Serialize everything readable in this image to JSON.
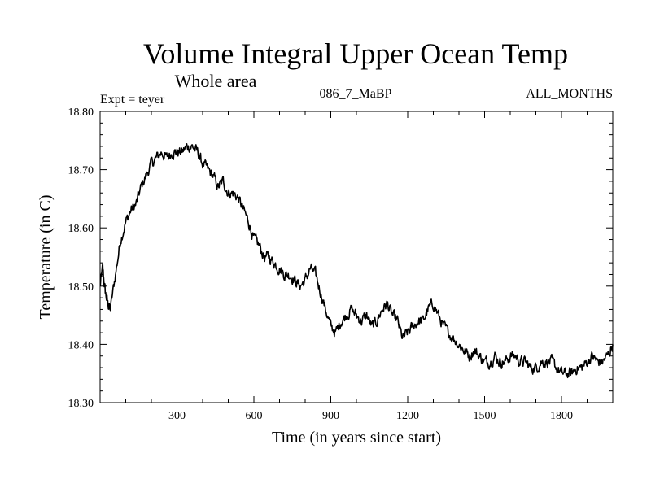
{
  "chart_data": {
    "type": "line",
    "title": "Volume Integral Upper Ocean Temp",
    "subtitle": "Whole area",
    "left_note": "Expt = teyer",
    "center_note": "086_7_MaBP",
    "right_note": "ALL_MONTHS",
    "xlabel": "Time (in years since start)",
    "ylabel": "Temperature (in C)",
    "xlim": [
      0,
      2000
    ],
    "ylim": [
      18.3,
      18.8
    ],
    "x_ticks": [
      300,
      600,
      900,
      1200,
      1500,
      1800
    ],
    "x_tick_labels": [
      "300",
      "600",
      "900",
      "1200",
      "1500",
      "1800"
    ],
    "y_ticks": [
      18.3,
      18.4,
      18.5,
      18.6,
      18.7,
      18.8
    ],
    "y_tick_labels": [
      "18.30",
      "18.40",
      "18.50",
      "18.60",
      "18.70",
      "18.80"
    ],
    "series": [
      {
        "name": "Temperature",
        "color": "#000000",
        "x": [
          0,
          10,
          20,
          30,
          40,
          60,
          80,
          100,
          120,
          140,
          160,
          180,
          200,
          220,
          240,
          260,
          280,
          300,
          320,
          340,
          360,
          380,
          400,
          420,
          440,
          460,
          480,
          500,
          520,
          540,
          560,
          580,
          600,
          620,
          640,
          660,
          680,
          700,
          720,
          740,
          760,
          780,
          800,
          820,
          840,
          860,
          880,
          900,
          920,
          940,
          960,
          980,
          1000,
          1020,
          1040,
          1060,
          1080,
          1100,
          1120,
          1140,
          1160,
          1180,
          1200,
          1220,
          1240,
          1260,
          1280,
          1300,
          1320,
          1340,
          1360,
          1380,
          1400,
          1420,
          1440,
          1460,
          1480,
          1500,
          1520,
          1540,
          1560,
          1580,
          1600,
          1620,
          1640,
          1660,
          1680,
          1700,
          1720,
          1740,
          1760,
          1780,
          1800,
          1820,
          1840,
          1860,
          1880,
          1900,
          1920,
          1940,
          1960,
          1980,
          2000
        ],
        "values": [
          18.5,
          18.53,
          18.49,
          18.47,
          18.46,
          18.52,
          18.58,
          18.61,
          18.63,
          18.64,
          18.67,
          18.69,
          18.71,
          18.72,
          18.73,
          18.72,
          18.73,
          18.73,
          18.73,
          18.74,
          18.74,
          18.73,
          18.71,
          18.7,
          18.69,
          18.67,
          18.68,
          18.66,
          18.66,
          18.65,
          18.63,
          18.61,
          18.58,
          18.57,
          18.55,
          18.55,
          18.54,
          18.53,
          18.52,
          18.52,
          18.51,
          18.5,
          18.51,
          18.53,
          18.52,
          18.49,
          18.46,
          18.43,
          18.42,
          18.44,
          18.45,
          18.46,
          18.45,
          18.44,
          18.45,
          18.43,
          18.44,
          18.46,
          18.47,
          18.45,
          18.44,
          18.41,
          18.42,
          18.43,
          18.44,
          18.44,
          18.46,
          18.47,
          18.45,
          18.43,
          18.42,
          18.41,
          18.4,
          18.39,
          18.38,
          18.39,
          18.38,
          18.37,
          18.37,
          18.38,
          18.37,
          18.37,
          18.38,
          18.38,
          18.37,
          18.37,
          18.36,
          18.36,
          18.37,
          18.37,
          18.37,
          18.36,
          18.35,
          18.35,
          18.35,
          18.36,
          18.36,
          18.37,
          18.38,
          18.37,
          18.37,
          18.38,
          18.4
        ]
      }
    ]
  }
}
